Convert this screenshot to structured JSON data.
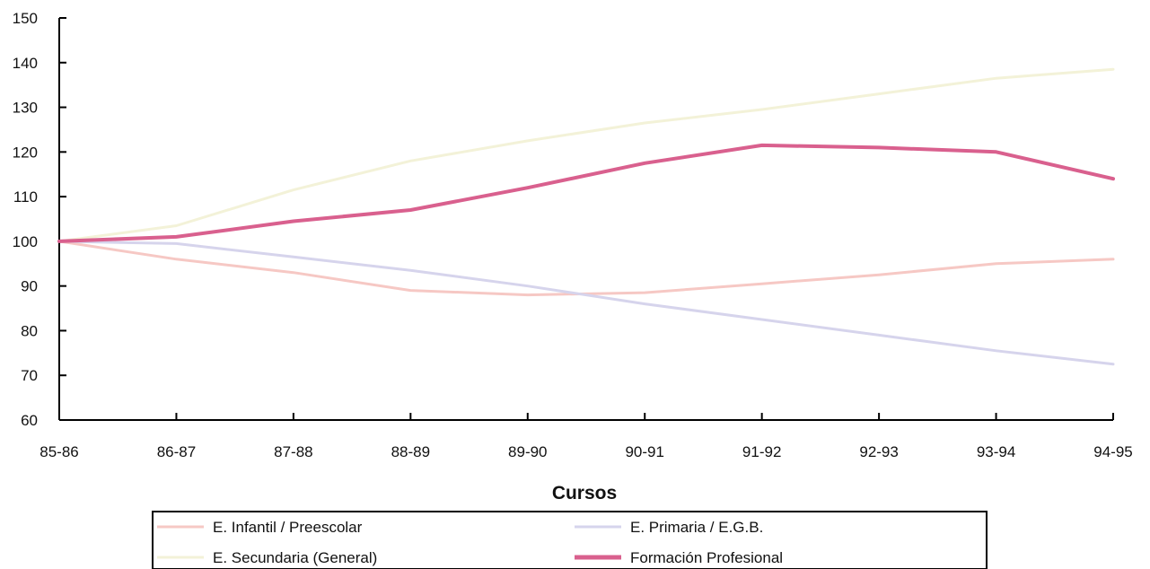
{
  "chart_data": {
    "type": "line",
    "title": "",
    "xlabel": "Cursos",
    "ylabel": "",
    "ylim": [
      60,
      150
    ],
    "yticks": [
      60,
      70,
      80,
      90,
      100,
      110,
      120,
      130,
      140,
      150
    ],
    "categories": [
      "85-86",
      "86-87",
      "87-88",
      "88-89",
      "89-90",
      "90-91",
      "91-92",
      "92-93",
      "93-94",
      "94-95"
    ],
    "grid": false,
    "legend_position": "bottom",
    "series": [
      {
        "name": "E. Infantil / Preescolar",
        "color": "#f6c8c4",
        "values": [
          100,
          96,
          93,
          89,
          88,
          88.5,
          90.5,
          92.5,
          95,
          96
        ]
      },
      {
        "name": "E. Primaria / E.G.B.",
        "color": "#d6d4ec",
        "values": [
          100,
          99.5,
          96.5,
          93.5,
          90,
          86,
          82.5,
          79,
          75.5,
          72.5
        ]
      },
      {
        "name": "E. Secundaria (General)",
        "color": "#f3f2d8",
        "values": [
          100,
          103.5,
          111.5,
          118,
          122.5,
          126.5,
          129.5,
          133,
          136.5,
          138.5
        ]
      },
      {
        "name": "Formación Profesional",
        "color": "#d9608e",
        "values": [
          100,
          101,
          104.5,
          107,
          112,
          117.5,
          121.5,
          121,
          120,
          114
        ]
      }
    ]
  }
}
